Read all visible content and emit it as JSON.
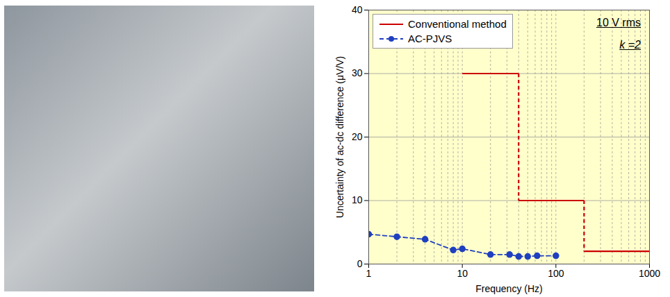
{
  "chart_data": {
    "type": "line",
    "x_label": "Frequency (Hz)",
    "y_label": "Uncertainty of ac-dc difference (μV/V)",
    "log": "x",
    "grid": true,
    "legend": "top-left",
    "xlim": [
      1,
      1000
    ],
    "xticks": [
      1,
      10,
      100,
      1000
    ],
    "ylim": [
      0,
      40
    ],
    "yticks": [
      0,
      10,
      20,
      30,
      40
    ],
    "annotations": [
      "10 V rms",
      "k =2"
    ],
    "series": [
      {
        "name": "Conventional method",
        "color": "#cc0000",
        "line_style": "solid",
        "x": [
          10,
          40,
          40,
          200,
          200,
          1000
        ],
        "values": [
          30,
          30,
          10,
          10,
          2,
          2
        ]
      },
      {
        "name": "AC-PJVS",
        "color": "#1f3fc0",
        "line_style": "dashed",
        "marker": "circle",
        "x": [
          1,
          2,
          4,
          8,
          10,
          20,
          32,
          40,
          50,
          63,
          100
        ],
        "values": [
          4.7,
          4.3,
          3.9,
          2.2,
          2.4,
          1.5,
          1.5,
          1.2,
          1.2,
          1.3,
          1.3
        ]
      }
    ]
  }
}
